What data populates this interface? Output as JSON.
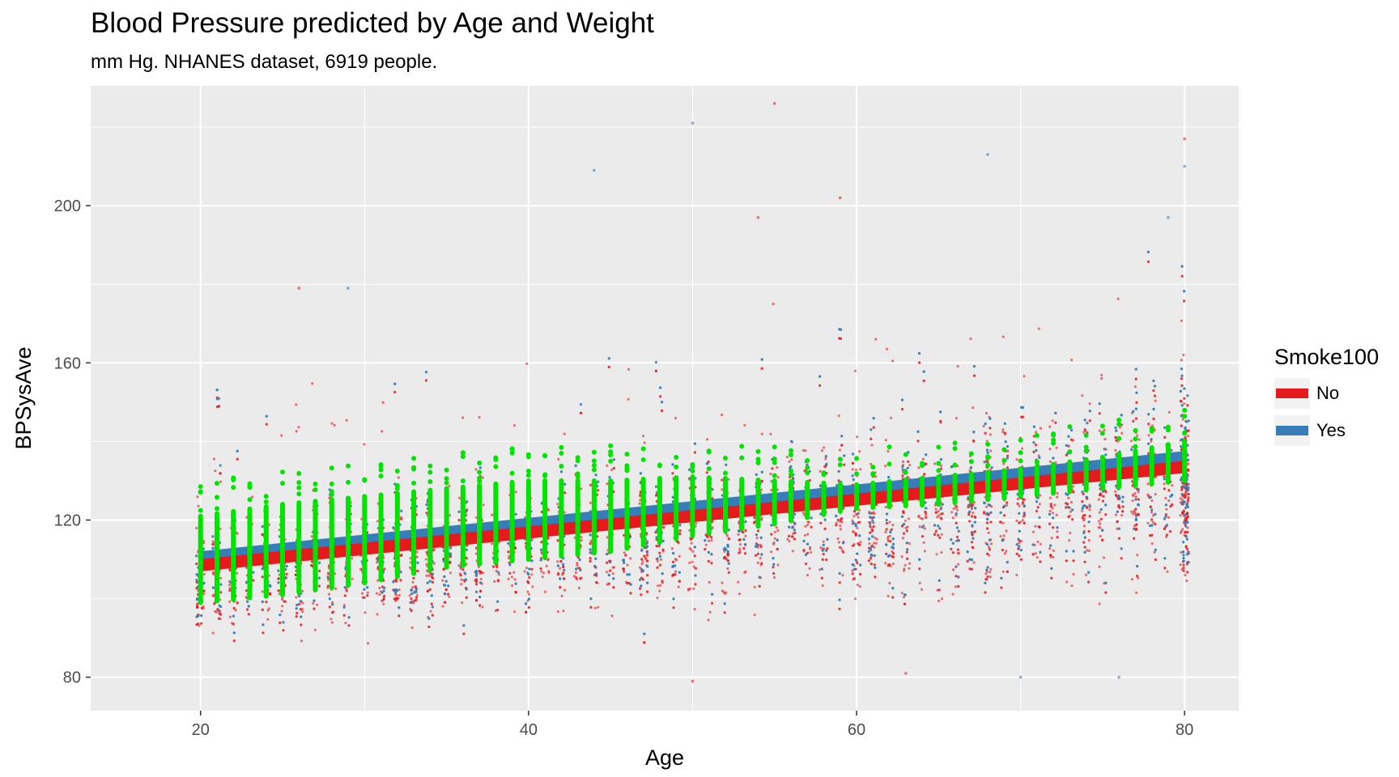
{
  "chart_data": {
    "type": "scatter",
    "title": "Blood Pressure predicted by Age and Weight",
    "subtitle": "mm Hg.  NHANES dataset, 6919 people.",
    "xlabel": "Age",
    "ylabel": "BPSysAve",
    "xlim": [
      13.3,
      83.3
    ],
    "ylim": [
      71.5,
      230.5
    ],
    "x_ticks": [
      20,
      40,
      60,
      80
    ],
    "y_ticks": [
      80,
      120,
      160,
      200
    ],
    "grid": true,
    "legend": {
      "title": "Smoke100",
      "position": "right",
      "entries": [
        {
          "label": "No",
          "color": "#e41a1c"
        },
        {
          "label": "Yes",
          "color": "#377eb8"
        }
      ]
    },
    "series": [
      {
        "name": "No",
        "kind": "points",
        "color": "#e41a1c",
        "approx_n": 3800
      },
      {
        "name": "Yes",
        "kind": "points",
        "color": "#377eb8",
        "approx_n": 3119
      },
      {
        "name": "No",
        "kind": "fit-line",
        "color": "#e41a1c",
        "x": [
          20,
          80
        ],
        "y": [
          108.5,
          133.5
        ]
      },
      {
        "name": "Yes",
        "kind": "fit-line",
        "color": "#377eb8",
        "x": [
          20,
          80
        ],
        "y": [
          110.5,
          136.0
        ]
      },
      {
        "kind": "predicted-by-age",
        "color": "#00e400",
        "x": [
          20,
          25,
          30,
          35,
          40,
          45,
          50,
          55,
          60,
          65,
          70,
          75,
          80
        ],
        "y_low": [
          99,
          101,
          104,
          108,
          110,
          112,
          116,
          119,
          123,
          124,
          126,
          128,
          130
        ],
        "y_high": [
          121,
          124,
          126,
          128,
          130,
          130,
          131,
          130,
          129,
          131,
          133,
          136,
          140
        ]
      }
    ],
    "outlier_points": [
      {
        "x": 50,
        "y": 221
      },
      {
        "x": 55,
        "y": 226
      },
      {
        "x": 44,
        "y": 209
      },
      {
        "x": 59,
        "y": 202
      },
      {
        "x": 68,
        "y": 213
      },
      {
        "x": 80,
        "y": 217
      },
      {
        "x": 80,
        "y": 210
      },
      {
        "x": 26,
        "y": 179
      },
      {
        "x": 29,
        "y": 179
      },
      {
        "x": 54,
        "y": 197
      },
      {
        "x": 79,
        "y": 197
      },
      {
        "x": 50,
        "y": 79
      },
      {
        "x": 76,
        "y": 80
      },
      {
        "x": 63,
        "y": 81
      },
      {
        "x": 70,
        "y": 80
      }
    ]
  }
}
